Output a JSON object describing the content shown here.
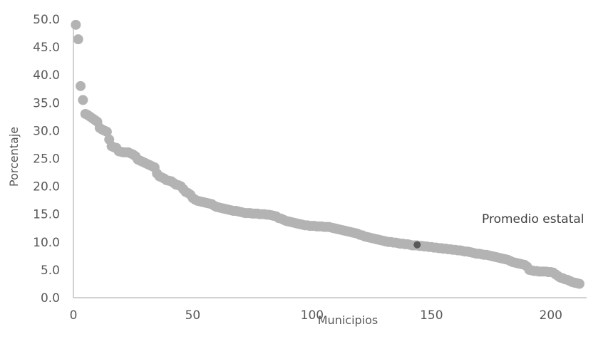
{
  "chart_data": {
    "type": "scatter",
    "xlabel": "Municipios",
    "ylabel": "Porcentaje",
    "xlim": [
      0,
      215
    ],
    "ylim": [
      0,
      50
    ],
    "x_ticks": [
      "0",
      "50",
      "100",
      "150",
      "200"
    ],
    "y_ticks": [
      "0.0",
      "5.0",
      "10.0",
      "15.0",
      "20.0",
      "25.0",
      "30.0",
      "35.0",
      "40.0",
      "45.0",
      "50.0"
    ],
    "grid": false,
    "series": [
      {
        "name": "Municipios",
        "color": "#b3b3b3",
        "x": [
          1,
          2,
          3,
          4,
          5,
          6,
          7,
          8,
          9,
          10,
          11,
          12,
          13,
          14,
          15,
          16,
          17,
          18,
          19,
          20,
          21,
          22,
          23,
          24,
          25,
          26,
          27,
          28,
          29,
          30,
          31,
          32,
          33,
          34,
          35,
          36,
          37,
          38,
          39,
          40,
          41,
          42,
          43,
          44,
          45,
          46,
          47,
          48,
          49,
          50,
          51,
          52,
          53,
          54,
          55,
          56,
          57,
          58,
          59,
          60,
          61,
          62,
          63,
          64,
          65,
          66,
          67,
          68,
          69,
          70,
          71,
          72,
          73,
          74,
          75,
          76,
          77,
          78,
          79,
          80,
          81,
          82,
          83,
          84,
          85,
          86,
          87,
          88,
          89,
          90,
          91,
          92,
          93,
          94,
          95,
          96,
          97,
          98,
          99,
          100,
          101,
          102,
          103,
          104,
          105,
          106,
          107,
          108,
          109,
          110,
          111,
          112,
          113,
          114,
          115,
          116,
          117,
          118,
          119,
          120,
          121,
          122,
          123,
          124,
          125,
          126,
          127,
          128,
          129,
          130,
          131,
          132,
          133,
          134,
          135,
          136,
          137,
          138,
          139,
          140,
          141,
          142,
          143,
          144,
          145,
          146,
          147,
          148,
          149,
          150,
          151,
          152,
          153,
          154,
          155,
          156,
          157,
          158,
          159,
          160,
          161,
          162,
          163,
          164,
          165,
          166,
          167,
          168,
          169,
          170,
          171,
          172,
          173,
          174,
          175,
          176,
          177,
          178,
          179,
          180,
          181,
          182,
          183,
          184,
          185,
          186,
          187,
          188,
          189,
          190,
          191,
          192,
          193,
          194,
          195,
          196,
          197,
          198,
          199,
          200,
          201,
          202,
          203,
          204,
          205,
          206,
          207,
          208,
          209,
          210,
          211,
          212
        ],
        "y": [
          49.0,
          46.4,
          38.0,
          35.5,
          33.0,
          32.8,
          32.5,
          32.2,
          31.9,
          31.6,
          30.5,
          30.2,
          30.0,
          29.8,
          28.4,
          27.2,
          27.0,
          26.9,
          26.3,
          26.2,
          26.1,
          26.1,
          26.1,
          25.9,
          25.7,
          25.4,
          24.8,
          24.6,
          24.4,
          24.2,
          24.0,
          23.8,
          23.6,
          23.4,
          22.3,
          21.8,
          21.6,
          21.4,
          21.1,
          21.0,
          20.9,
          20.6,
          20.3,
          20.2,
          20.0,
          19.5,
          19.0,
          18.8,
          18.5,
          17.9,
          17.6,
          17.4,
          17.3,
          17.2,
          17.1,
          17.0,
          16.9,
          16.8,
          16.5,
          16.3,
          16.2,
          16.1,
          16.0,
          15.9,
          15.8,
          15.7,
          15.6,
          15.6,
          15.5,
          15.4,
          15.3,
          15.2,
          15.2,
          15.2,
          15.1,
          15.1,
          15.1,
          15.0,
          15.0,
          15.0,
          14.9,
          14.9,
          14.8,
          14.7,
          14.6,
          14.3,
          14.2,
          14.0,
          13.8,
          13.7,
          13.6,
          13.5,
          13.4,
          13.3,
          13.2,
          13.1,
          13.0,
          13.0,
          12.9,
          12.9,
          12.9,
          12.8,
          12.8,
          12.8,
          12.7,
          12.7,
          12.7,
          12.6,
          12.5,
          12.4,
          12.3,
          12.2,
          12.1,
          12.0,
          11.9,
          11.8,
          11.7,
          11.6,
          11.5,
          11.3,
          11.2,
          11.0,
          10.9,
          10.8,
          10.7,
          10.6,
          10.5,
          10.4,
          10.3,
          10.2,
          10.1,
          10.0,
          10.0,
          9.9,
          9.9,
          9.8,
          9.7,
          9.7,
          9.6,
          9.6,
          9.5,
          9.4,
          9.4,
          9.4,
          9.3,
          9.3,
          9.2,
          9.2,
          9.1,
          9.1,
          9.0,
          9.0,
          8.9,
          8.9,
          8.8,
          8.8,
          8.7,
          8.7,
          8.6,
          8.6,
          8.5,
          8.5,
          8.4,
          8.3,
          8.3,
          8.2,
          8.1,
          8.0,
          7.9,
          7.9,
          7.8,
          7.7,
          7.7,
          7.6,
          7.5,
          7.4,
          7.3,
          7.2,
          7.1,
          7.0,
          6.9,
          6.8,
          6.6,
          6.4,
          6.3,
          6.2,
          6.1,
          6.0,
          5.9,
          5.6,
          5.0,
          4.9,
          4.8,
          4.8,
          4.7,
          4.7,
          4.7,
          4.7,
          4.6,
          4.6,
          4.5,
          4.2,
          3.9,
          3.6,
          3.5,
          3.3,
          3.2,
          3.0,
          2.8,
          2.7,
          2.6,
          2.5
        ]
      },
      {
        "name": "Promedio estatal",
        "color": "#595959",
        "x": [
          144
        ],
        "y": [
          9.5
        ]
      }
    ],
    "annotations": [
      {
        "text": "Promedio estatal"
      }
    ]
  }
}
